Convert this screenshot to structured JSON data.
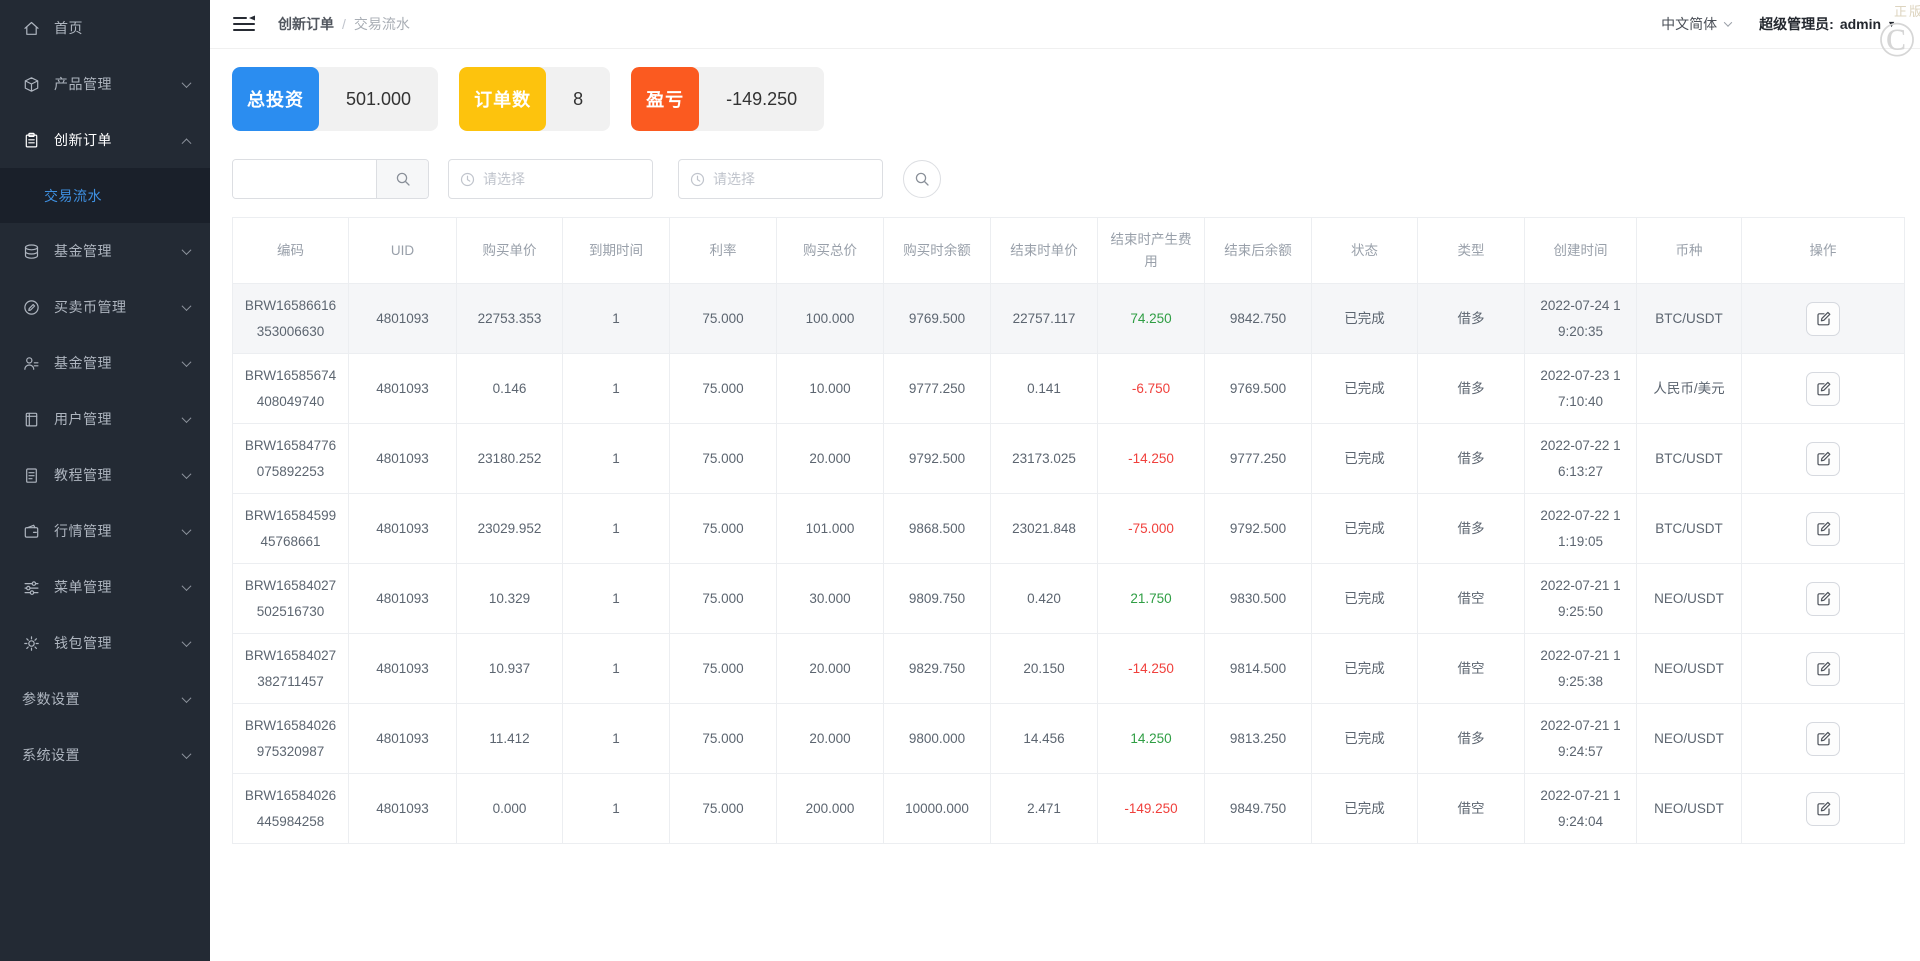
{
  "header": {
    "breadcrumb": {
      "parent": "创新订单",
      "separator": "/",
      "current": "交易流水"
    },
    "language": "中文简体",
    "admin_label": "超级管理员:",
    "admin_name": "admin"
  },
  "watermark": {
    "text": "正版",
    "symbol": "©"
  },
  "sidebar": {
    "items": [
      {
        "key": "home",
        "label": "首页",
        "icon": "home-icon",
        "arrow": ""
      },
      {
        "key": "product-management",
        "label": "产品管理",
        "icon": "cube-icon",
        "arrow": "down"
      },
      {
        "key": "innovation-orders",
        "label": "创新订单",
        "icon": "clipboard-icon",
        "arrow": "up",
        "active": true,
        "children": [
          {
            "key": "transaction-flow",
            "label": "交易流水",
            "active": true
          }
        ]
      },
      {
        "key": "fund-management",
        "label": "基金管理",
        "icon": "coins-icon",
        "arrow": "down"
      },
      {
        "key": "coin-trading-management",
        "label": "买卖币管理",
        "icon": "edit-circle-icon",
        "arrow": "down"
      },
      {
        "key": "fund-management-2",
        "label": "基金管理",
        "icon": "user-icon",
        "arrow": "down"
      },
      {
        "key": "user-management",
        "label": "用户管理",
        "icon": "notebook-icon",
        "arrow": "down"
      },
      {
        "key": "tutorial-management",
        "label": "教程管理",
        "icon": "document-icon",
        "arrow": "down"
      },
      {
        "key": "market-management",
        "label": "行情管理",
        "icon": "wallet-icon",
        "arrow": "down"
      },
      {
        "key": "menu-management",
        "label": "菜单管理",
        "icon": "sliders-icon",
        "arrow": "down"
      },
      {
        "key": "wallet-management",
        "label": "钱包管理",
        "icon": "gear-icon",
        "arrow": "down"
      },
      {
        "key": "parameter-settings",
        "label": "参数设置",
        "icon": "",
        "arrow": "down"
      },
      {
        "key": "system-settings",
        "label": "系统设置",
        "icon": "",
        "arrow": "down"
      }
    ]
  },
  "stats": [
    {
      "label": "总投资",
      "value": "501.000",
      "color": "#2b8df0"
    },
    {
      "label": "订单数",
      "value": "8",
      "color": "#fdc30d"
    },
    {
      "label": "盈亏",
      "value": "-149.250",
      "color": "#fb5a20"
    }
  ],
  "filters": {
    "keyword_value": "",
    "date_start_placeholder": "请选择",
    "date_end_placeholder": "请选择"
  },
  "table": {
    "headers": [
      "编码",
      "UID",
      "购买单价",
      "到期时间",
      "利率",
      "购买总价",
      "购买时余额",
      "结束时单价",
      "结束时产生费用",
      "结束后余额",
      "状态",
      "类型",
      "创建时间",
      "币种",
      "操作"
    ],
    "rows": [
      {
        "code": "BRW16586616353006630",
        "uid": "4801093",
        "buy_price": "22753.353",
        "expire_time": "1",
        "rate": "75.000",
        "buy_total": "100.000",
        "balance_at_buy": "9769.500",
        "end_price": "22757.117",
        "end_fee": "74.250",
        "balance_after": "9842.750",
        "status": "已完成",
        "type": "借多",
        "created_at": "2022-07-24 19:20:35",
        "currency": "BTC/USDT"
      },
      {
        "code": "BRW16585674408049740",
        "uid": "4801093",
        "buy_price": "0.146",
        "expire_time": "1",
        "rate": "75.000",
        "buy_total": "10.000",
        "balance_at_buy": "9777.250",
        "end_price": "0.141",
        "end_fee": "-6.750",
        "balance_after": "9769.500",
        "status": "已完成",
        "type": "借多",
        "created_at": "2022-07-23 17:10:40",
        "currency": "人民币/美元"
      },
      {
        "code": "BRW16584776075892253",
        "uid": "4801093",
        "buy_price": "23180.252",
        "expire_time": "1",
        "rate": "75.000",
        "buy_total": "20.000",
        "balance_at_buy": "9792.500",
        "end_price": "23173.025",
        "end_fee": "-14.250",
        "balance_after": "9777.250",
        "status": "已完成",
        "type": "借多",
        "created_at": "2022-07-22 16:13:27",
        "currency": "BTC/USDT"
      },
      {
        "code": "BRW1658459945768661",
        "uid": "4801093",
        "buy_price": "23029.952",
        "expire_time": "1",
        "rate": "75.000",
        "buy_total": "101.000",
        "balance_at_buy": "9868.500",
        "end_price": "23021.848",
        "end_fee": "-75.000",
        "balance_after": "9792.500",
        "status": "已完成",
        "type": "借多",
        "created_at": "2022-07-22 11:19:05",
        "currency": "BTC/USDT"
      },
      {
        "code": "BRW16584027502516730",
        "uid": "4801093",
        "buy_price": "10.329",
        "expire_time": "1",
        "rate": "75.000",
        "buy_total": "30.000",
        "balance_at_buy": "9809.750",
        "end_price": "0.420",
        "end_fee": "21.750",
        "balance_after": "9830.500",
        "status": "已完成",
        "type": "借空",
        "created_at": "2022-07-21 19:25:50",
        "currency": "NEO/USDT"
      },
      {
        "code": "BRW16584027382711457",
        "uid": "4801093",
        "buy_price": "10.937",
        "expire_time": "1",
        "rate": "75.000",
        "buy_total": "20.000",
        "balance_at_buy": "9829.750",
        "end_price": "20.150",
        "end_fee": "-14.250",
        "balance_after": "9814.500",
        "status": "已完成",
        "type": "借空",
        "created_at": "2022-07-21 19:25:38",
        "currency": "NEO/USDT"
      },
      {
        "code": "BRW16584026975320987",
        "uid": "4801093",
        "buy_price": "11.412",
        "expire_time": "1",
        "rate": "75.000",
        "buy_total": "20.000",
        "balance_at_buy": "9800.000",
        "end_price": "14.456",
        "end_fee": "14.250",
        "balance_after": "9813.250",
        "status": "已完成",
        "type": "借多",
        "created_at": "2022-07-21 19:24:57",
        "currency": "NEO/USDT"
      },
      {
        "code": "BRW16584026445984258",
        "uid": "4801093",
        "buy_price": "0.000",
        "expire_time": "1",
        "rate": "75.000",
        "buy_total": "200.000",
        "balance_at_buy": "10000.000",
        "end_price": "2.471",
        "end_fee": "-149.250",
        "balance_after": "9849.750",
        "status": "已完成",
        "type": "借空",
        "created_at": "2022-07-21 19:24:04",
        "currency": "NEO/USDT"
      }
    ]
  }
}
